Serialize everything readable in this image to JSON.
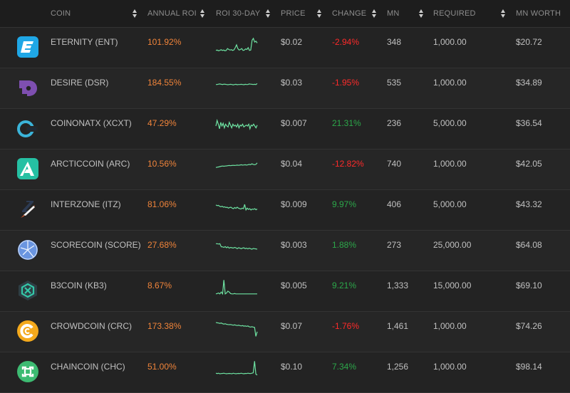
{
  "header": {
    "coin": "COIN",
    "annual_roi": "ANNUAL ROI",
    "roi_30day": "ROI 30-DAY",
    "price": "PRICE",
    "change": "CHANGE",
    "mn": "MN",
    "required": "REQUIRED",
    "mn_worth": "MN WORTH"
  },
  "colors": {
    "roi": "#f0843a",
    "negative": "#ff2a2a",
    "positive": "#2ca84a",
    "sparkline": "#6ee3a2"
  },
  "rows": [
    {
      "name": "ETERNITY (ENT)",
      "icon": "eternity-logo-icon",
      "annual_roi": "101.92%",
      "price": "$0.02",
      "change": "-2.94%",
      "direction": "neg",
      "mn": "348",
      "required": "1,000.00",
      "mn_worth": "$20.72",
      "spark": [
        0.2,
        0.22,
        0.18,
        0.2,
        0.24,
        0.2,
        0.22,
        0.18,
        0.2,
        0.3,
        0.25,
        0.22,
        0.24,
        0.2,
        0.23,
        0.35,
        0.5,
        0.3,
        0.22,
        0.25,
        0.3,
        0.2,
        0.22,
        0.28,
        0.25,
        0.35,
        0.2,
        0.22,
        0.75,
        0.85,
        0.65,
        0.7,
        0.6
      ]
    },
    {
      "name": "DESIRE (DSR)",
      "icon": "desire-logo-icon",
      "annual_roi": "184.55%",
      "price": "$0.03",
      "change": "-1.95%",
      "direction": "neg",
      "mn": "535",
      "required": "1,000.00",
      "mn_worth": "$34.89",
      "spark": [
        0.55,
        0.55,
        0.57,
        0.58,
        0.56,
        0.55,
        0.57,
        0.56,
        0.55,
        0.54,
        0.55,
        0.56,
        0.55,
        0.53,
        0.55,
        0.56,
        0.54,
        0.55,
        0.55,
        0.56,
        0.55,
        0.54,
        0.56,
        0.55,
        0.55,
        0.58,
        0.57,
        0.56,
        0.55,
        0.56,
        0.55,
        0.6
      ]
    },
    {
      "name": "COINONATX (XCXT)",
      "icon": "coinonatx-logo-icon",
      "annual_roi": "47.29%",
      "price": "$0.007",
      "change": "21.31%",
      "direction": "pos",
      "mn": "236",
      "required": "5,000.00",
      "mn_worth": "$36.54",
      "spark": [
        0.5,
        0.8,
        0.6,
        0.35,
        0.7,
        0.5,
        0.65,
        0.4,
        0.6,
        0.5,
        0.45,
        0.7,
        0.55,
        0.4,
        0.6,
        0.5,
        0.55,
        0.45,
        0.6,
        0.4,
        0.55,
        0.5,
        0.6,
        0.45,
        0.5,
        0.55,
        0.5,
        0.6,
        0.35,
        0.55,
        0.5,
        0.6,
        0.5,
        0.4,
        0.55
      ]
    },
    {
      "name": "ARCTICCOIN (ARC)",
      "icon": "arcticcoin-logo-icon",
      "annual_roi": "10.56%",
      "price": "$0.04",
      "change": "-12.82%",
      "direction": "neg",
      "mn": "740",
      "required": "1,000.00",
      "mn_worth": "$42.05",
      "spark": [
        0.45,
        0.47,
        0.48,
        0.5,
        0.52,
        0.53,
        0.52,
        0.53,
        0.54,
        0.55,
        0.56,
        0.55,
        0.56,
        0.57,
        0.56,
        0.57,
        0.58,
        0.57,
        0.58,
        0.6,
        0.58,
        0.59,
        0.6,
        0.58,
        0.6,
        0.62,
        0.6,
        0.65,
        0.62,
        0.6,
        0.62,
        0.7
      ]
    },
    {
      "name": "INTERZONE (ITZ)",
      "icon": "interzone-logo-icon",
      "annual_roi": "81.06%",
      "price": "$0.009",
      "change": "9.97%",
      "direction": "pos",
      "mn": "406",
      "required": "5,000.00",
      "mn_worth": "$43.32",
      "spark": [
        0.62,
        0.58,
        0.6,
        0.55,
        0.52,
        0.55,
        0.5,
        0.52,
        0.48,
        0.5,
        0.45,
        0.48,
        0.5,
        0.45,
        0.42,
        0.48,
        0.44,
        0.5,
        0.45,
        0.42,
        0.4,
        0.45,
        0.42,
        0.65,
        0.35,
        0.45,
        0.38,
        0.42,
        0.35,
        0.4,
        0.38,
        0.42,
        0.36,
        0.4
      ]
    },
    {
      "name": "SCORECOIN (SCORE)",
      "icon": "scorecoin-logo-icon",
      "annual_roi": "27.68%",
      "price": "$0.003",
      "change": "1.88%",
      "direction": "pos",
      "mn": "273",
      "required": "25,000.00",
      "mn_worth": "$64.08",
      "spark": [
        0.72,
        0.72,
        0.7,
        0.72,
        0.55,
        0.55,
        0.52,
        0.56,
        0.5,
        0.55,
        0.48,
        0.52,
        0.5,
        0.48,
        0.52,
        0.5,
        0.45,
        0.5,
        0.48,
        0.45,
        0.48,
        0.5,
        0.45,
        0.48,
        0.44,
        0.48,
        0.45,
        0.42,
        0.46,
        0.45,
        0.44,
        0.42
      ]
    },
    {
      "name": "B3COIN (KB3)",
      "icon": "b3coin-logo-icon",
      "annual_roi": "8.67%",
      "price": "$0.005",
      "change": "9.21%",
      "direction": "pos",
      "mn": "1,333",
      "required": "15,000.00",
      "mn_worth": "$69.10",
      "spark": [
        0.2,
        0.22,
        0.25,
        0.2,
        0.3,
        0.2,
        0.95,
        0.2,
        0.25,
        0.35,
        0.3,
        0.22,
        0.2,
        0.2,
        0.22,
        0.2,
        0.2,
        0.2,
        0.2,
        0.2,
        0.2,
        0.2,
        0.2,
        0.2,
        0.2,
        0.2,
        0.2,
        0.2,
        0.2,
        0.2,
        0.2,
        0.2
      ]
    },
    {
      "name": "CROWDCOIN (CRC)",
      "icon": "crowdcoin-logo-icon",
      "annual_roi": "173.38%",
      "price": "$0.07",
      "change": "-1.76%",
      "direction": "neg",
      "mn": "1,461",
      "required": "1,000.00",
      "mn_worth": "$74.26",
      "spark": [
        0.85,
        0.83,
        0.82,
        0.8,
        0.82,
        0.78,
        0.76,
        0.78,
        0.75,
        0.74,
        0.73,
        0.74,
        0.72,
        0.7,
        0.72,
        0.7,
        0.68,
        0.7,
        0.68,
        0.66,
        0.68,
        0.65,
        0.66,
        0.64,
        0.66,
        0.62,
        0.6,
        0.62,
        0.6,
        0.58,
        0.1,
        0.35
      ]
    },
    {
      "name": "CHAINCOIN (CHC)",
      "icon": "chaincoin-logo-icon",
      "annual_roi": "51.00%",
      "price": "$0.10",
      "change": "7.34%",
      "direction": "pos",
      "mn": "1,256",
      "required": "1,000.00",
      "mn_worth": "$98.14",
      "spark": [
        0.3,
        0.28,
        0.3,
        0.27,
        0.28,
        0.29,
        0.3,
        0.28,
        0.27,
        0.28,
        0.29,
        0.28,
        0.27,
        0.3,
        0.28,
        0.27,
        0.28,
        0.29,
        0.28,
        0.3,
        0.28,
        0.27,
        0.29,
        0.28,
        0.3,
        0.29,
        0.28,
        0.3,
        0.32,
        0.95,
        0.25,
        0.2
      ]
    }
  ]
}
